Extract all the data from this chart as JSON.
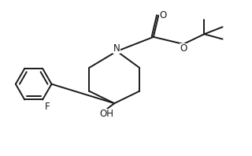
{
  "background_color": "#ffffff",
  "line_color": "#1a1a1a",
  "line_width": 1.4,
  "font_size": 8.5,
  "fig_width": 3.2,
  "fig_height": 1.98,
  "dpi": 100,
  "xlim": [
    0,
    10
  ],
  "ylim": [
    0,
    6.2
  ]
}
